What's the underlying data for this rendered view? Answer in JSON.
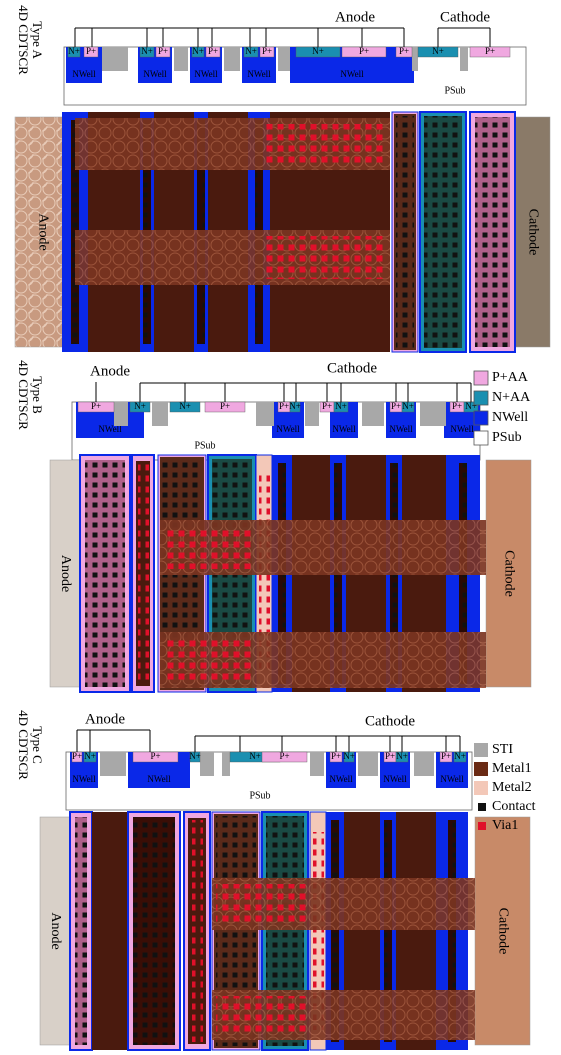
{
  "panels": [
    {
      "title": [
        "4D CDTSCR",
        "Type A"
      ],
      "anode": "Anode",
      "cathode": "Cathode",
      "implants": [
        "N+",
        "P+",
        "N+",
        "P+",
        "N+",
        "P+",
        "N+",
        "P+",
        "N+",
        "P+",
        "P+",
        "N+",
        "P+"
      ],
      "wells": [
        "NWell",
        "NWell",
        "NWell",
        "NWell",
        "NWell"
      ],
      "psub": "PSub",
      "layout_anode": "Anode",
      "layout_cathode": "Cathode"
    },
    {
      "title": [
        "4D CDTSCR",
        "Type B"
      ],
      "anode": "Anode",
      "cathode": "Cathode",
      "implants": [
        "P+",
        "N+",
        "N+",
        "P+",
        "P+",
        "N+",
        "P+",
        "N+",
        "P+",
        "N+",
        "P+",
        "N+"
      ],
      "wells": [
        "NWell",
        "NWell",
        "NWell",
        "NWell",
        "NWell"
      ],
      "psub": "PSub",
      "layout_anode": "Anode",
      "layout_cathode": "Cathode"
    },
    {
      "title": [
        "4D CDTSCR",
        "Type C"
      ],
      "anode": "Anode",
      "cathode": "Cathode",
      "implants": [
        "P+",
        "N+",
        "P+",
        "N+",
        "N+",
        "P+",
        "P+",
        "N+",
        "P+",
        "N+",
        "P+",
        "N+"
      ],
      "wells": [
        "NWell",
        "NWell",
        "NWell",
        "NWell",
        "NWell"
      ],
      "psub": "PSub",
      "layout_anode": "Anode",
      "layout_cathode": "Cathode"
    }
  ],
  "legend": [
    {
      "label": "P+AA"
    },
    {
      "label": "N+AA"
    },
    {
      "label": "NWell"
    },
    {
      "label": "PSub"
    },
    {
      "label": "STI"
    },
    {
      "label": "Metal1"
    },
    {
      "label": "Metal2"
    },
    {
      "label": "Contact"
    },
    {
      "label": "Via1"
    }
  ]
}
